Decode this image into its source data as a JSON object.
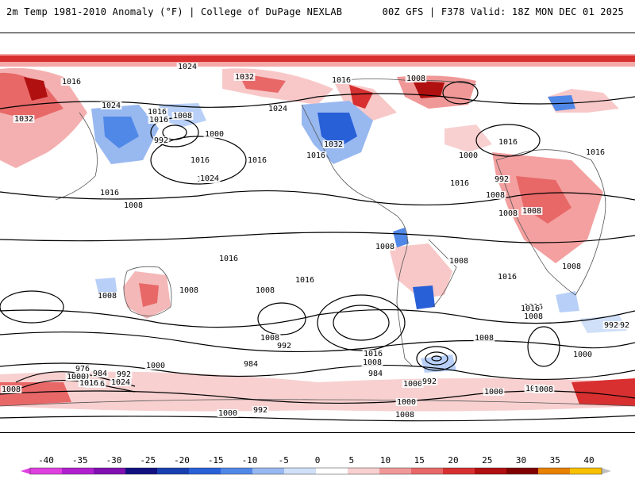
{
  "header": {
    "left_title": "2m Temp 1981-2010 Anomaly (°F) | College of DuPage NEXLAB",
    "right_title": "00Z GFS | F378 Valid: 18Z MON DEC 01 2025"
  },
  "map": {
    "variable": "2m Temperature Anomaly",
    "isobar_labels": [
      "1024",
      "1032",
      "1016",
      "1016",
      "1008",
      "1016",
      "1024",
      "1032",
      "1024",
      "1016",
      "1008",
      "992",
      "1000",
      "1032",
      "1016",
      "1016",
      "1024",
      "1016",
      "1008",
      "1000",
      "1016",
      "992",
      "1008",
      "1024",
      "1016",
      "1016",
      "1008",
      "1008",
      "1016",
      "1008",
      "1008",
      "1008",
      "1016",
      "1016",
      "1008",
      "1008",
      "1016",
      "1008",
      "1008",
      "1000",
      "992",
      "1016",
      "1008",
      "1000",
      "992",
      "984",
      "1000",
      "992",
      "1016",
      "1000",
      "984",
      "992",
      "1000",
      "1008",
      "976",
      "984",
      "992",
      "1000",
      "1016",
      "1024",
      "1008",
      "1000",
      "992",
      "1008",
      "1016",
      "1016",
      "1008",
      "1000",
      "1008",
      "992",
      "1000",
      "1008"
    ]
  },
  "legend": {
    "unit": "°F",
    "labels": [
      "-40",
      "-35",
      "-30",
      "-25",
      "-20",
      "-15",
      "-10",
      "-5",
      "0",
      "5",
      "10",
      "15",
      "20",
      "25",
      "30",
      "35",
      "40"
    ],
    "colors": [
      "#e040e0",
      "#b020d0",
      "#8010b0",
      "#101080",
      "#1840b0",
      "#2860d8",
      "#5088e8",
      "#98b8f0",
      "#d0e0f8",
      "#ffffff",
      "#f8d0d0",
      "#f09898",
      "#e86868",
      "#d83030",
      "#b01010",
      "#800000",
      "#e88000",
      "#f8c000",
      "#c0c0c0"
    ]
  }
}
